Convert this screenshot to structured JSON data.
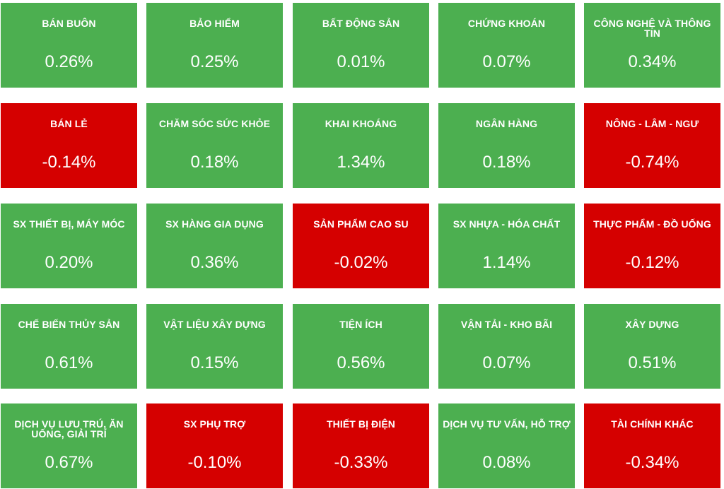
{
  "colors": {
    "up": "#4caf50",
    "down": "#d50000"
  },
  "sectors": [
    {
      "name": "BÁN BUÔN",
      "change": "0.26%",
      "direction": "up"
    },
    {
      "name": "BẢO HIỂM",
      "change": "0.25%",
      "direction": "up"
    },
    {
      "name": "BẤT ĐỘNG SẢN",
      "change": "0.01%",
      "direction": "up"
    },
    {
      "name": "CHỨNG KHOÁN",
      "change": "0.07%",
      "direction": "up"
    },
    {
      "name": "CÔNG NGHỆ VÀ THÔNG TIN",
      "change": "0.34%",
      "direction": "up"
    },
    {
      "name": "BÁN LẺ",
      "change": "-0.14%",
      "direction": "down"
    },
    {
      "name": "CHĂM SÓC SỨC KHỎE",
      "change": "0.18%",
      "direction": "up"
    },
    {
      "name": "KHAI KHOÁNG",
      "change": "1.34%",
      "direction": "up"
    },
    {
      "name": "NGÂN HÀNG",
      "change": "0.18%",
      "direction": "up"
    },
    {
      "name": "NÔNG - LÂM - NGƯ",
      "change": "-0.74%",
      "direction": "down"
    },
    {
      "name": "SX THIẾT BỊ, MÁY MÓC",
      "change": "0.20%",
      "direction": "up"
    },
    {
      "name": "SX HÀNG GIA DỤNG",
      "change": "0.36%",
      "direction": "up"
    },
    {
      "name": "SẢN PHẨM CAO SU",
      "change": "-0.02%",
      "direction": "down"
    },
    {
      "name": "SX NHỰA - HÓA CHẤT",
      "change": "1.14%",
      "direction": "up"
    },
    {
      "name": "THỰC PHẨM - ĐỒ UỐNG",
      "change": "-0.12%",
      "direction": "down"
    },
    {
      "name": "CHẾ BIẾN THỦY SẢN",
      "change": "0.61%",
      "direction": "up"
    },
    {
      "name": "VẬT LIỆU XÂY DỰNG",
      "change": "0.15%",
      "direction": "up"
    },
    {
      "name": "TIỆN ÍCH",
      "change": "0.56%",
      "direction": "up"
    },
    {
      "name": "VẬN TẢI - KHO BÃI",
      "change": "0.07%",
      "direction": "up"
    },
    {
      "name": "XÂY DỰNG",
      "change": "0.51%",
      "direction": "up"
    },
    {
      "name": "DỊCH VỤ LƯU TRÚ, ĂN UỐNG, GIẢI TRÍ",
      "change": "0.67%",
      "direction": "up"
    },
    {
      "name": "SX PHỤ TRỢ",
      "change": "-0.10%",
      "direction": "down"
    },
    {
      "name": "THIẾT BỊ ĐIỆN",
      "change": "-0.33%",
      "direction": "down"
    },
    {
      "name": "DỊCH VỤ TƯ VẤN, HỖ TRỢ",
      "change": "0.08%",
      "direction": "up"
    },
    {
      "name": "TÀI CHÍNH KHÁC",
      "change": "-0.34%",
      "direction": "down"
    }
  ]
}
